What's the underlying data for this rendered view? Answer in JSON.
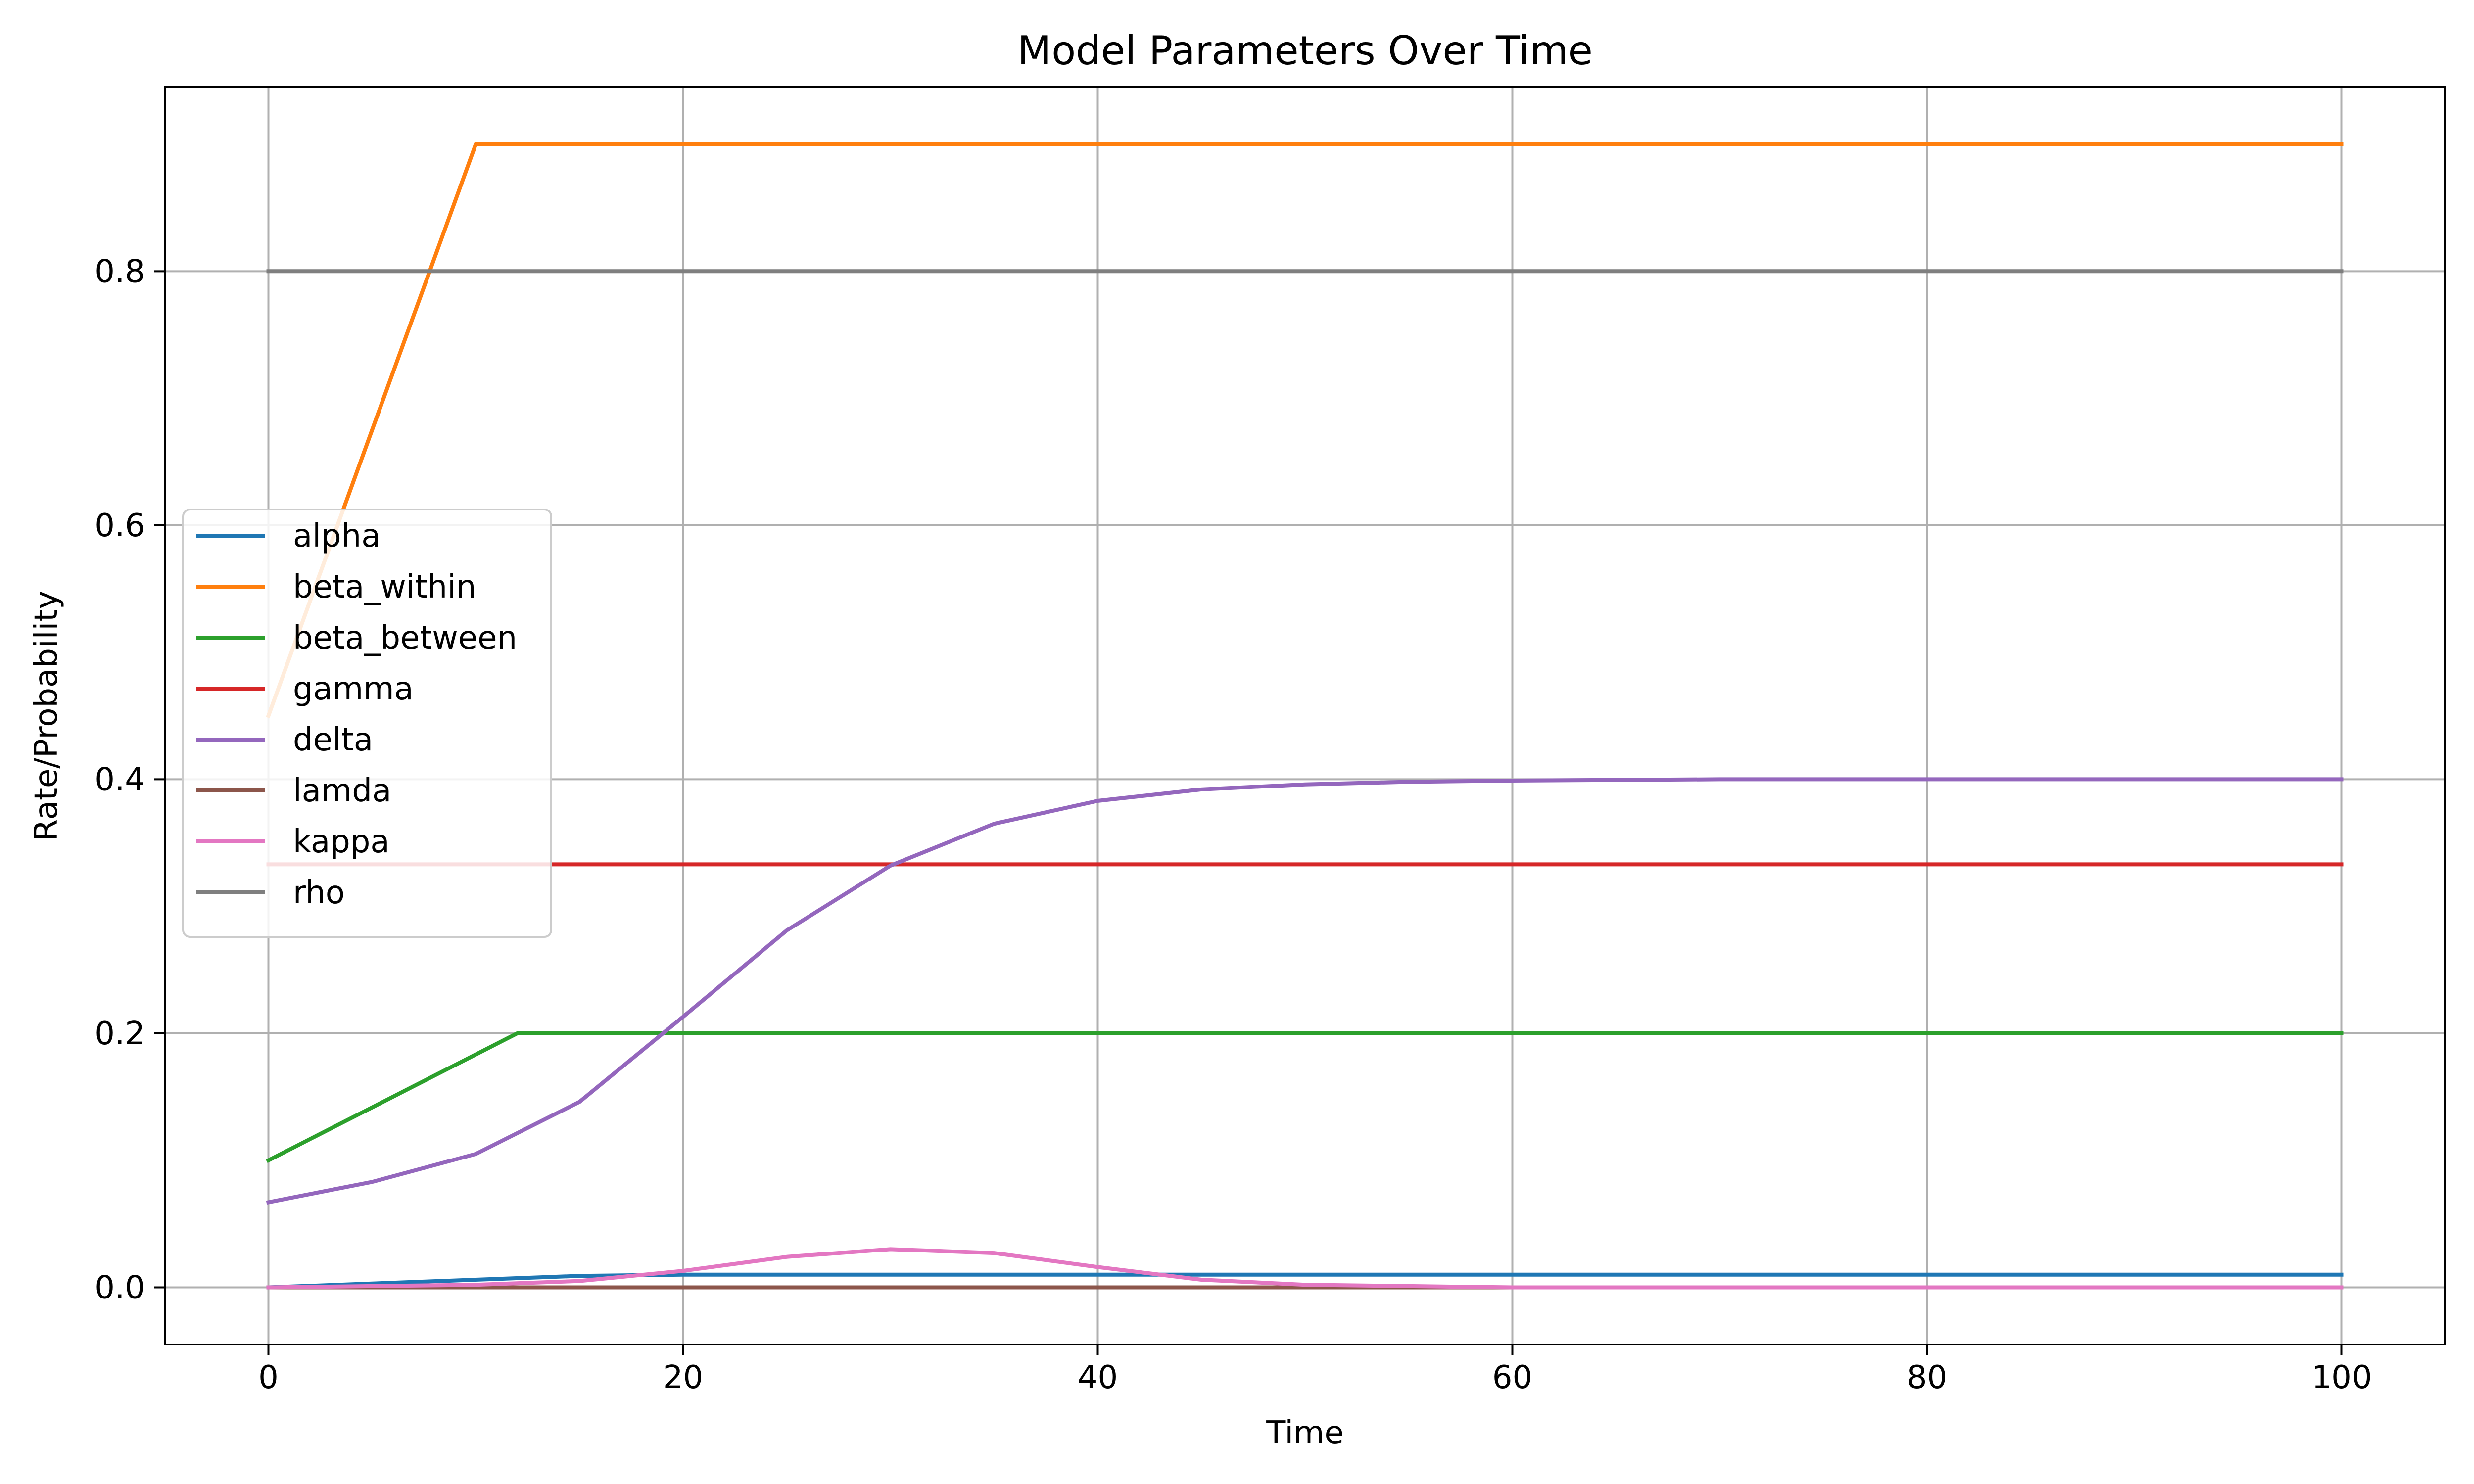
{
  "chart_data": {
    "type": "line",
    "title": "Model Parameters Over Time",
    "xlabel": "Time",
    "ylabel": "Rate/Probability",
    "xlim": [
      -5,
      105
    ],
    "ylim": [
      -0.045,
      0.945
    ],
    "xticks": [
      0,
      20,
      40,
      60,
      80,
      100
    ],
    "yticks": [
      0.0,
      0.2,
      0.4,
      0.6,
      0.8
    ],
    "xtick_labels": [
      "0",
      "20",
      "40",
      "60",
      "80",
      "100"
    ],
    "ytick_labels": [
      "0.0",
      "0.2",
      "0.4",
      "0.6",
      "0.8"
    ],
    "grid": true,
    "legend_position": "center-left",
    "series": [
      {
        "name": "alpha",
        "color": "#1f77b4",
        "x": [
          0,
          5,
          10,
          15,
          20,
          25,
          30,
          40,
          50,
          60,
          70,
          80,
          90,
          100
        ],
        "y": [
          0.0,
          0.003,
          0.006,
          0.009,
          0.01,
          0.01,
          0.01,
          0.01,
          0.01,
          0.01,
          0.01,
          0.01,
          0.01,
          0.01
        ]
      },
      {
        "name": "beta_within",
        "color": "#ff7f0e",
        "x": [
          0,
          10,
          100
        ],
        "y": [
          0.45,
          0.9,
          0.9
        ]
      },
      {
        "name": "beta_between",
        "color": "#2ca02c",
        "x": [
          0,
          12,
          100
        ],
        "y": [
          0.1,
          0.2,
          0.2
        ]
      },
      {
        "name": "gamma",
        "color": "#d62728",
        "x": [
          0,
          100
        ],
        "y": [
          0.333,
          0.333
        ]
      },
      {
        "name": "delta",
        "color": "#9467bd",
        "x": [
          0,
          5,
          10,
          15,
          20,
          25,
          30,
          35,
          40,
          45,
          50,
          55,
          60,
          70,
          80,
          90,
          100
        ],
        "y": [
          0.067,
          0.083,
          0.105,
          0.146,
          0.213,
          0.281,
          0.332,
          0.365,
          0.383,
          0.392,
          0.396,
          0.398,
          0.399,
          0.4,
          0.4,
          0.4,
          0.4
        ]
      },
      {
        "name": "lamda",
        "color": "#8c564b",
        "x": [
          0,
          100
        ],
        "y": [
          0.0,
          0.0
        ]
      },
      {
        "name": "kappa",
        "color": "#e377c2",
        "x": [
          0,
          5,
          10,
          15,
          20,
          25,
          30,
          35,
          40,
          45,
          50,
          55,
          60,
          70,
          80,
          90,
          100
        ],
        "y": [
          0.0,
          0.001,
          0.002,
          0.005,
          0.013,
          0.024,
          0.03,
          0.027,
          0.016,
          0.006,
          0.002,
          0.001,
          0.0,
          0.0,
          0.0,
          0.0,
          0.0
        ]
      },
      {
        "name": "rho",
        "color": "#7f7f7f",
        "x": [
          0,
          100
        ],
        "y": [
          0.8,
          0.8
        ]
      }
    ]
  }
}
